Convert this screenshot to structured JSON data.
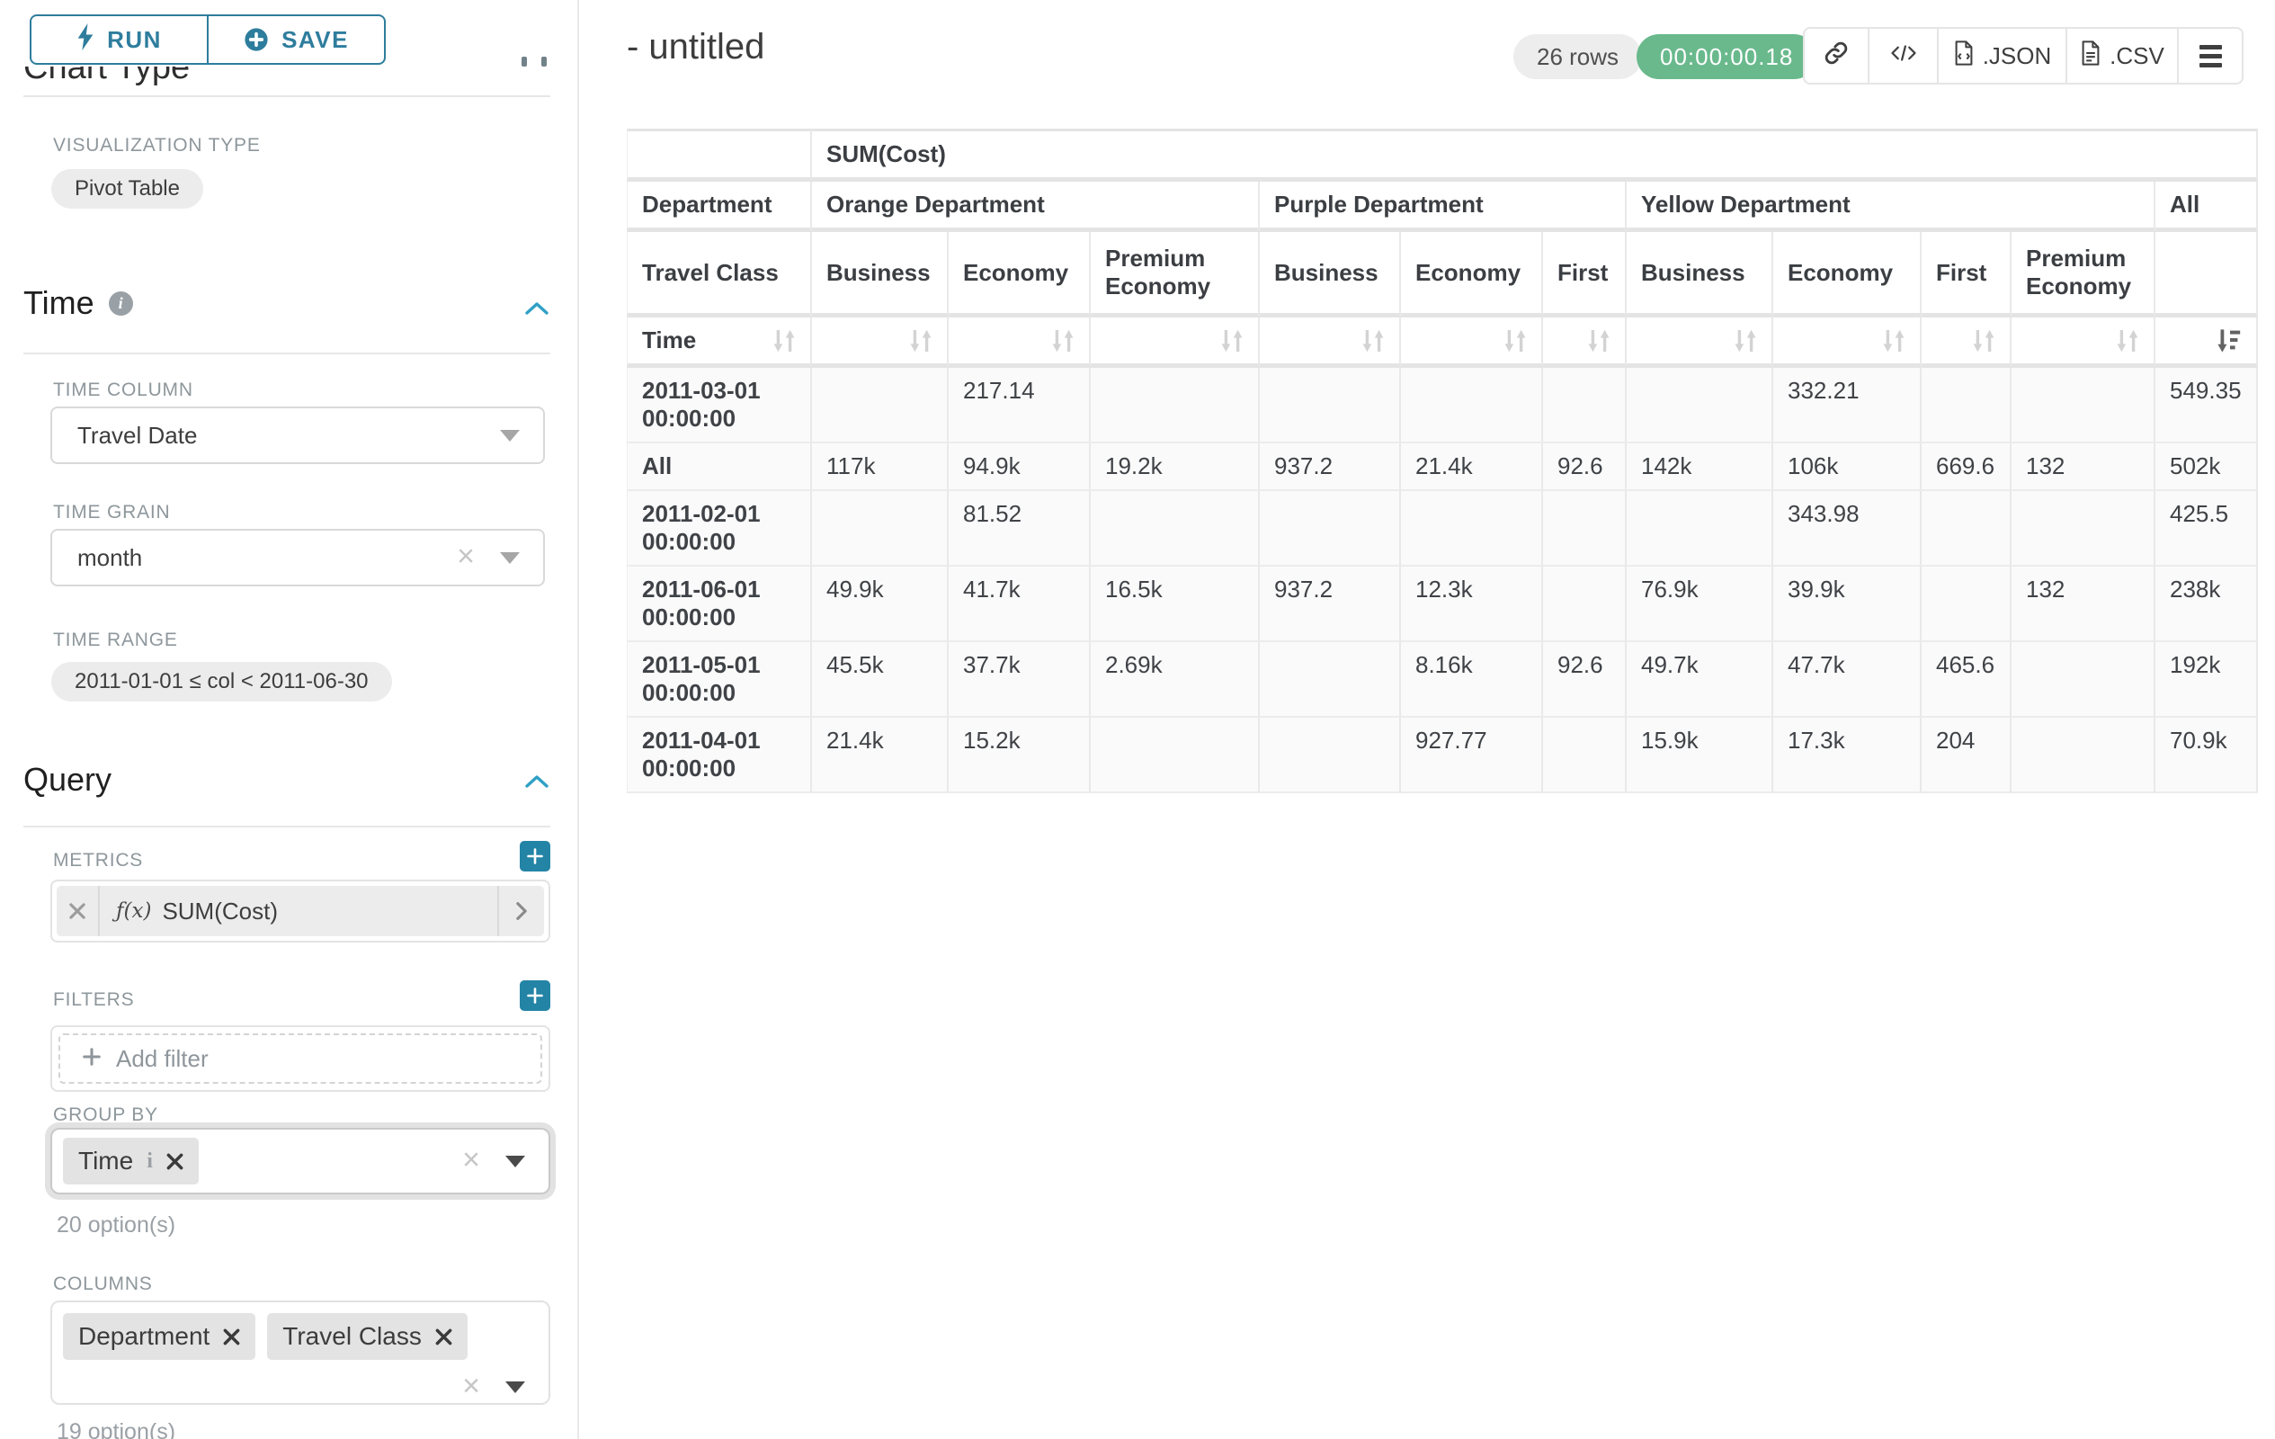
{
  "colors": {
    "accent": "#2e7d9d",
    "plus_button": "#2484a6",
    "section_chevron": "#2fa0c6",
    "timer_green": "#69b98c"
  },
  "sidebar": {
    "run_button": "RUN",
    "save_button": "SAVE",
    "hidden_heading": "Chart Type",
    "viz_type": {
      "label": "VISUALIZATION TYPE",
      "value": "Pivot Table"
    },
    "time": {
      "heading": "Time",
      "time_column": {
        "label": "TIME COLUMN",
        "value": "Travel Date"
      },
      "time_grain": {
        "label": "TIME GRAIN",
        "value": "month"
      },
      "time_range": {
        "label": "TIME RANGE",
        "value": "2011-01-01 ≤ col < 2011-06-30"
      }
    },
    "query": {
      "heading": "Query",
      "metrics": {
        "label": "METRICS",
        "items": [
          {
            "prefix": "ƒ(x)",
            "name": "SUM(Cost)"
          }
        ]
      },
      "filters": {
        "label": "FILTERS",
        "placeholder": "Add filter"
      },
      "group_by": {
        "label": "GROUP BY",
        "tags": [
          "Time"
        ],
        "options_hint": "20 option(s)"
      },
      "columns": {
        "label": "COLUMNS",
        "tags": [
          "Department",
          "Travel Class"
        ],
        "options_hint": "19 option(s)"
      }
    }
  },
  "header": {
    "title": "- untitled",
    "rows_badge": "26 rows",
    "timer_badge": "00:00:00.18",
    "export_json": ".JSON",
    "export_csv": ".CSV"
  },
  "chart_data": {
    "type": "table",
    "title": "SUM(Cost)",
    "row_dimension": {
      "corner_labels": [
        "Department",
        "Travel Class",
        "Time"
      ]
    },
    "column_groups": [
      {
        "label": "Orange Department",
        "columns": [
          "Business",
          "Economy",
          "Premium Economy"
        ]
      },
      {
        "label": "Purple Department",
        "columns": [
          "Business",
          "Economy",
          "First"
        ]
      },
      {
        "label": "Yellow Department",
        "columns": [
          "Business",
          "Economy",
          "First",
          "Premium Economy"
        ]
      },
      {
        "label": "All",
        "columns": [
          ""
        ]
      }
    ],
    "sorted_column": "All",
    "sort_direction": "desc",
    "rows": [
      {
        "label": "2011-03-01 00:00:00",
        "values": [
          "",
          "217.14",
          "",
          "",
          "",
          "",
          "",
          "332.21",
          "",
          "",
          "549.35"
        ]
      },
      {
        "label": "All",
        "values": [
          "117k",
          "94.9k",
          "19.2k",
          "937.2",
          "21.4k",
          "92.6",
          "142k",
          "106k",
          "669.6",
          "132",
          "502k"
        ]
      },
      {
        "label": "2011-02-01 00:00:00",
        "values": [
          "",
          "81.52",
          "",
          "",
          "",
          "",
          "",
          "343.98",
          "",
          "",
          "425.5"
        ]
      },
      {
        "label": "2011-06-01 00:00:00",
        "values": [
          "49.9k",
          "41.7k",
          "16.5k",
          "937.2",
          "12.3k",
          "",
          "76.9k",
          "39.9k",
          "",
          "132",
          "238k"
        ]
      },
      {
        "label": "2011-05-01 00:00:00",
        "values": [
          "45.5k",
          "37.7k",
          "2.69k",
          "",
          "8.16k",
          "92.6",
          "49.7k",
          "47.7k",
          "465.6",
          "",
          "192k"
        ]
      },
      {
        "label": "2011-04-01 00:00:00",
        "values": [
          "21.4k",
          "15.2k",
          "",
          "",
          "927.77",
          "",
          "15.9k",
          "17.3k",
          "204",
          "",
          "70.9k"
        ]
      }
    ]
  }
}
